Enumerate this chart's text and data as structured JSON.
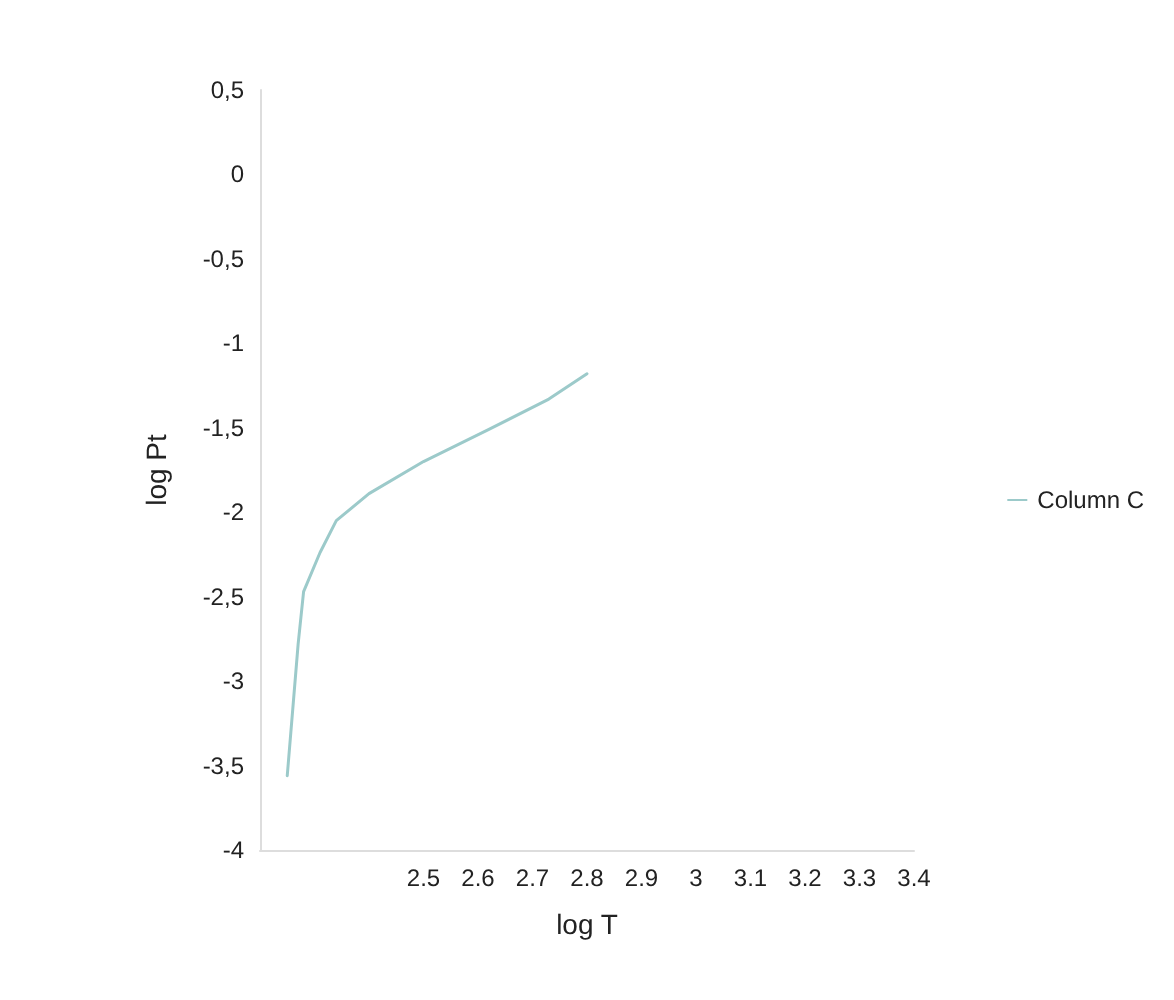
{
  "chart_data": {
    "type": "line",
    "xlabel": "log T",
    "ylabel": "log Pt",
    "series": [
      {
        "name": "Column C",
        "color": "#9ccaca",
        "x": [
          2.25,
          2.26,
          2.27,
          2.28,
          2.31,
          2.34,
          2.4,
          2.5,
          2.62,
          2.73,
          2.8
        ],
        "values": [
          -3.56,
          -3.17,
          -2.78,
          -2.47,
          -2.24,
          -2.05,
          -1.89,
          -1.7,
          -1.51,
          -1.33,
          -1.18
        ]
      }
    ],
    "xlim": [
      2.2,
      3.4
    ],
    "xticks": [
      2.5,
      2.6,
      2.7,
      2.8,
      2.9,
      3,
      3.1,
      3.2,
      3.3,
      3.4
    ],
    "ylim": [
      -4,
      0.5
    ],
    "yticks": [
      {
        "value": 0.5,
        "label": "0,5"
      },
      0,
      {
        "value": -0.5,
        "label": "-0,5"
      },
      -1,
      {
        "value": -1.5,
        "label": "-1,5"
      },
      -2,
      {
        "value": -2.5,
        "label": "-2,5"
      },
      -3,
      {
        "value": -3.5,
        "label": "-3,5"
      },
      -4
    ],
    "grid": false,
    "legend": "right",
    "marker": "none",
    "line_style": "solid"
  }
}
